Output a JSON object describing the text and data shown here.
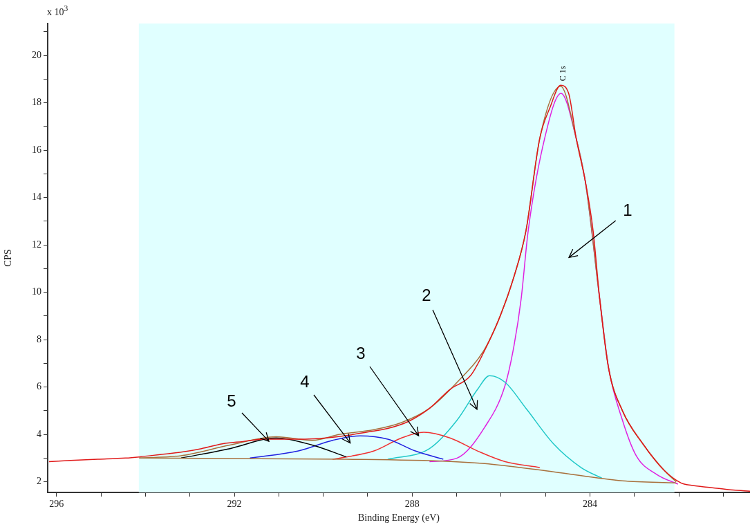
{
  "chart_data": {
    "type": "line",
    "xlabel": "Binding Energy (eV)",
    "ylabel": "CPS",
    "xlim": [
      296.2,
      280.4
    ],
    "ylim": [
      1.55,
      21.35
    ],
    "xticks": [
      296,
      {
        "value": 295,
        "label": null
      },
      {
        "value": 294,
        "label": null
      },
      {
        "value": 293,
        "label": null
      },
      292,
      {
        "value": 291,
        "label": null
      },
      {
        "value": 290,
        "label": null
      },
      {
        "value": 289,
        "label": null
      },
      288,
      {
        "value": 287,
        "label": null
      },
      {
        "value": 286,
        "label": null
      },
      {
        "value": 285,
        "label": null
      },
      284,
      {
        "value": 283,
        "label": null
      },
      {
        "value": 282,
        "label": null
      },
      {
        "value": 281,
        "label": null
      }
    ],
    "yticks": [
      2,
      {
        "value": 3,
        "label": null
      },
      4,
      {
        "value": 5,
        "label": null
      },
      6,
      {
        "value": 7,
        "label": null
      },
      8,
      {
        "value": 9,
        "label": null
      },
      10,
      {
        "value": 11,
        "label": null
      },
      12,
      {
        "value": 13,
        "label": null
      },
      14,
      {
        "value": 15,
        "label": null
      },
      16,
      {
        "value": 17,
        "label": null
      },
      18,
      {
        "value": 19,
        "label": null
      },
      20,
      {
        "value": 21,
        "label": null
      }
    ],
    "grid": false,
    "legend": false,
    "marker": "none",
    "line_style": "solid",
    "bands": [
      {
        "axis": "x",
        "from": 294.15,
        "to": 282.1,
        "color": "#e0ffff"
      }
    ],
    "series": [
      {
        "color": "#e01818",
        "x": [
          296.17,
          295.69,
          295.07,
          294.45,
          294.14,
          293.67,
          293.2,
          292.74,
          292.27,
          291.81,
          291.34,
          290.88,
          290.41,
          289.94,
          289.48,
          289.01,
          288.55,
          288.08,
          287.61,
          287.15,
          286.68,
          286.3,
          286.02,
          285.71,
          285.44,
          285.13,
          284.9,
          284.66,
          284.48,
          284.31,
          284.09,
          283.93,
          283.78,
          283.58,
          283.27,
          282.81,
          282.34,
          281.95,
          281.71,
          281.25,
          280.78,
          280.4
        ],
        "values": [
          2.85,
          2.9,
          2.95,
          3.0,
          3.05,
          3.15,
          3.25,
          3.4,
          3.6,
          3.7,
          3.8,
          3.8,
          3.8,
          3.85,
          3.95,
          4.1,
          4.25,
          4.55,
          5.1,
          5.9,
          6.5,
          7.82,
          9.0,
          10.66,
          12.6,
          16.5,
          17.8,
          18.74,
          18.4,
          16.5,
          14.54,
          12.6,
          9.7,
          6.77,
          5.0,
          3.6,
          2.5,
          1.95,
          1.85,
          1.75,
          1.65,
          1.6
        ]
      },
      {
        "color": "#a8703c",
        "x": [
          294.14,
          293.2,
          292.1,
          291.06,
          290.25,
          289.63,
          288.86,
          288.24,
          287.61,
          286.99,
          286.37,
          286.02,
          285.71,
          285.44,
          285.13,
          284.66,
          284.31,
          284.09,
          283.78,
          283.58,
          283.27,
          282.81,
          282.34,
          282.06
        ],
        "values": [
          3.0,
          3.1,
          3.55,
          3.9,
          3.75,
          4.0,
          4.2,
          4.5,
          5.1,
          6.2,
          7.6,
          9.0,
          10.66,
          12.6,
          16.5,
          18.7,
          16.5,
          14.5,
          9.7,
          6.8,
          5.0,
          3.6,
          2.5,
          2.0
        ]
      },
      {
        "color": "#a8703c",
        "x": [
          294.14,
          289.48,
          287.15,
          286.37,
          284.82,
          283.27,
          282.06
        ],
        "values": [
          3.0,
          2.95,
          2.86,
          2.77,
          2.42,
          2.04,
          1.95
        ]
      },
      {
        "color": "#000000",
        "x": [
          293.2,
          292.1,
          291.06,
          290.25,
          289.48
        ],
        "values": [
          3.0,
          3.4,
          3.85,
          3.55,
          3.05
        ]
      },
      {
        "color": "#2020e0",
        "x": [
          291.65,
          290.56,
          289.79,
          289.17,
          288.55,
          287.93,
          287.3
        ],
        "values": [
          3.0,
          3.3,
          3.75,
          3.94,
          3.8,
          3.3,
          2.95
        ]
      },
      {
        "color": "#f03030",
        "x": [
          289.79,
          288.86,
          288.24,
          287.74,
          287.15,
          286.53,
          285.91,
          285.13
        ],
        "values": [
          2.95,
          3.3,
          3.85,
          4.09,
          3.85,
          3.3,
          2.85,
          2.6
        ]
      },
      {
        "color": "#20c8c8",
        "x": [
          288.55,
          287.61,
          286.99,
          286.53,
          286.26,
          285.91,
          285.44,
          284.82,
          284.2,
          283.73
        ],
        "values": [
          2.95,
          3.4,
          4.6,
          5.9,
          6.48,
          6.2,
          5.1,
          3.6,
          2.6,
          2.15
        ]
      },
      {
        "color": "#e020e0",
        "x": [
          287.61,
          286.99,
          286.37,
          285.91,
          285.71,
          285.55,
          285.39,
          285.02,
          284.65,
          284.31,
          284.09,
          283.78,
          283.58,
          283.27,
          282.96,
          282.49,
          282.02
        ],
        "values": [
          2.85,
          3.0,
          4.3,
          6.07,
          7.74,
          9.7,
          12.6,
          16.5,
          18.4,
          16.5,
          14.5,
          9.7,
          6.8,
          4.6,
          3.1,
          2.3,
          1.9
        ]
      }
    ],
    "annotations": [
      "x 10$^{3}$",
      {
        "text": "C 1s",
        "x": 284.66,
        "y": 18.74
      },
      "1",
      "2",
      {
        "text": "3",
        "x": 287.86,
        "y": 3.94
      },
      "4",
      {
        "text": "5",
        "x": 291.22,
        "y": 3.71
      }
    ]
  }
}
